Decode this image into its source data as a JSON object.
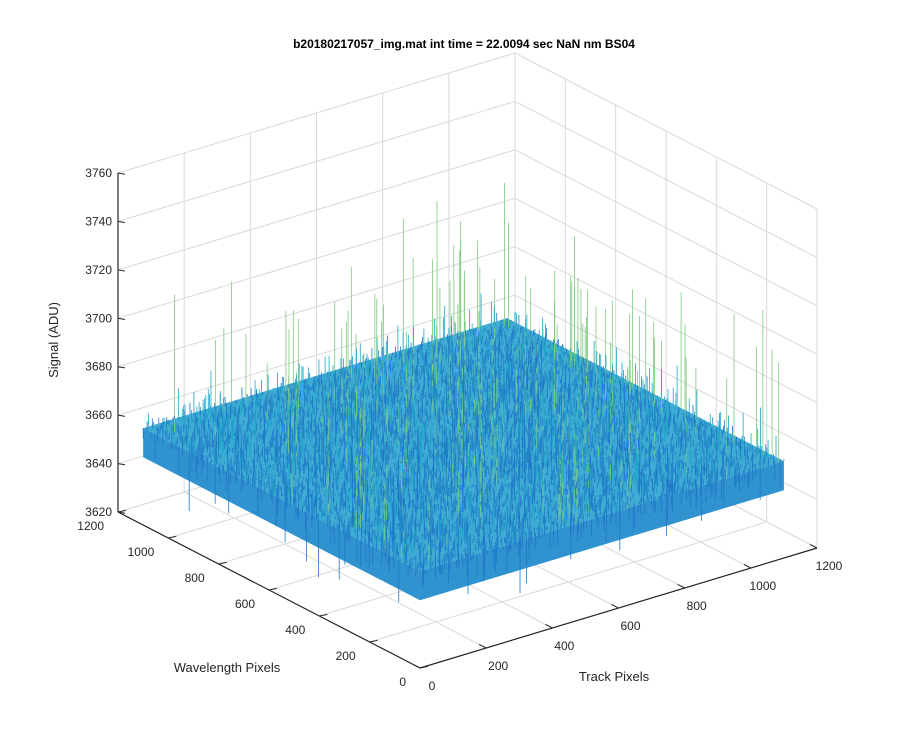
{
  "chart_data": {
    "type": "surface",
    "title": "b20180217057_img.mat int time = 22.0094 sec  NaN nm BS04",
    "xlabel": "Track Pixels",
    "ylabel": "Wavelength Pixels",
    "zlabel": "Signal (ADU)",
    "x_ticks": [
      "0",
      "200",
      "400",
      "600",
      "800",
      "1000",
      "1200"
    ],
    "y_ticks": [
      "0",
      "200",
      "400",
      "600",
      "800",
      "1000",
      "1200"
    ],
    "z_ticks": [
      "3620",
      "3640",
      "3660",
      "3680",
      "3700",
      "3720",
      "3740",
      "3760"
    ],
    "xlim": [
      0,
      1200
    ],
    "ylim": [
      0,
      1200
    ],
    "zlim": [
      3620,
      3760
    ],
    "grid": true,
    "surface": {
      "x_range": [
        0,
        1100
      ],
      "y_range": [
        0,
        1100
      ],
      "mean_signal": 3660,
      "noise_min": 3630,
      "noise_max": 3720,
      "colormap": "parula"
    },
    "colors": {
      "surface_low": "#1f77c8",
      "surface_mid": "#19a5c8",
      "surface_high": "#7fc97f",
      "grid": "#d9d9d9",
      "axis": "#262626"
    }
  }
}
